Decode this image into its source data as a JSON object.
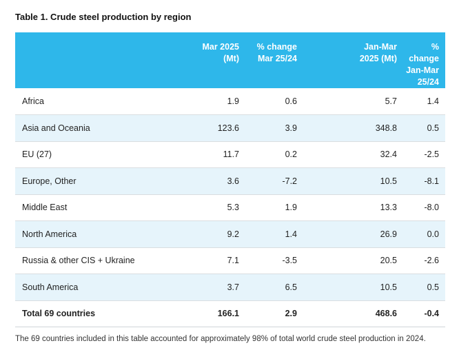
{
  "title": "Table 1. Crude steel production by region",
  "headers": [
    {
      "line1": "",
      "line2": "",
      "line3": ""
    },
    {
      "line1": "Mar 2025",
      "line2": "(Mt)",
      "line3": ""
    },
    {
      "line1": "% change",
      "line2": "Mar 25/24",
      "line3": ""
    },
    {
      "line1": "Jan-Mar",
      "line2": "2025 (Mt)",
      "line3": ""
    },
    {
      "line1": "% change",
      "line2": "Jan-Mar",
      "line3": "25/24"
    }
  ],
  "rows": [
    {
      "region": "Africa",
      "mar": "1.9",
      "mar_change": "0.6",
      "ytd": "5.7",
      "ytd_change": "1.4"
    },
    {
      "region": "Asia and Oceania",
      "mar": "123.6",
      "mar_change": "3.9",
      "ytd": "348.8",
      "ytd_change": "0.5"
    },
    {
      "region": "EU (27)",
      "mar": "11.7",
      "mar_change": "0.2",
      "ytd": "32.4",
      "ytd_change": "-2.5"
    },
    {
      "region": "Europe, Other",
      "mar": "3.6",
      "mar_change": "-7.2",
      "ytd": "10.5",
      "ytd_change": "-8.1"
    },
    {
      "region": "Middle East",
      "mar": "5.3",
      "mar_change": "1.9",
      "ytd": "13.3",
      "ytd_change": "-8.0"
    },
    {
      "region": "North America",
      "mar": "9.2",
      "mar_change": "1.4",
      "ytd": "26.9",
      "ytd_change": "0.0"
    },
    {
      "region": "Russia & other CIS + Ukraine",
      "mar": "7.1",
      "mar_change": "-3.5",
      "ytd": "20.5",
      "ytd_change": "-2.6"
    },
    {
      "region": "South America",
      "mar": "3.7",
      "mar_change": "6.5",
      "ytd": "10.5",
      "ytd_change": "0.5"
    },
    {
      "region": "Total 69 countries",
      "mar": "166.1",
      "mar_change": "2.9",
      "ytd": "468.6",
      "ytd_change": "-0.4"
    }
  ],
  "colors": {
    "header_bg": "#2eb7ea",
    "alt_row_bg": "#e6f4fb"
  },
  "footnote": "The 69 countries included in this table accounted for approximately 98% of total world crude steel production in 2024."
}
